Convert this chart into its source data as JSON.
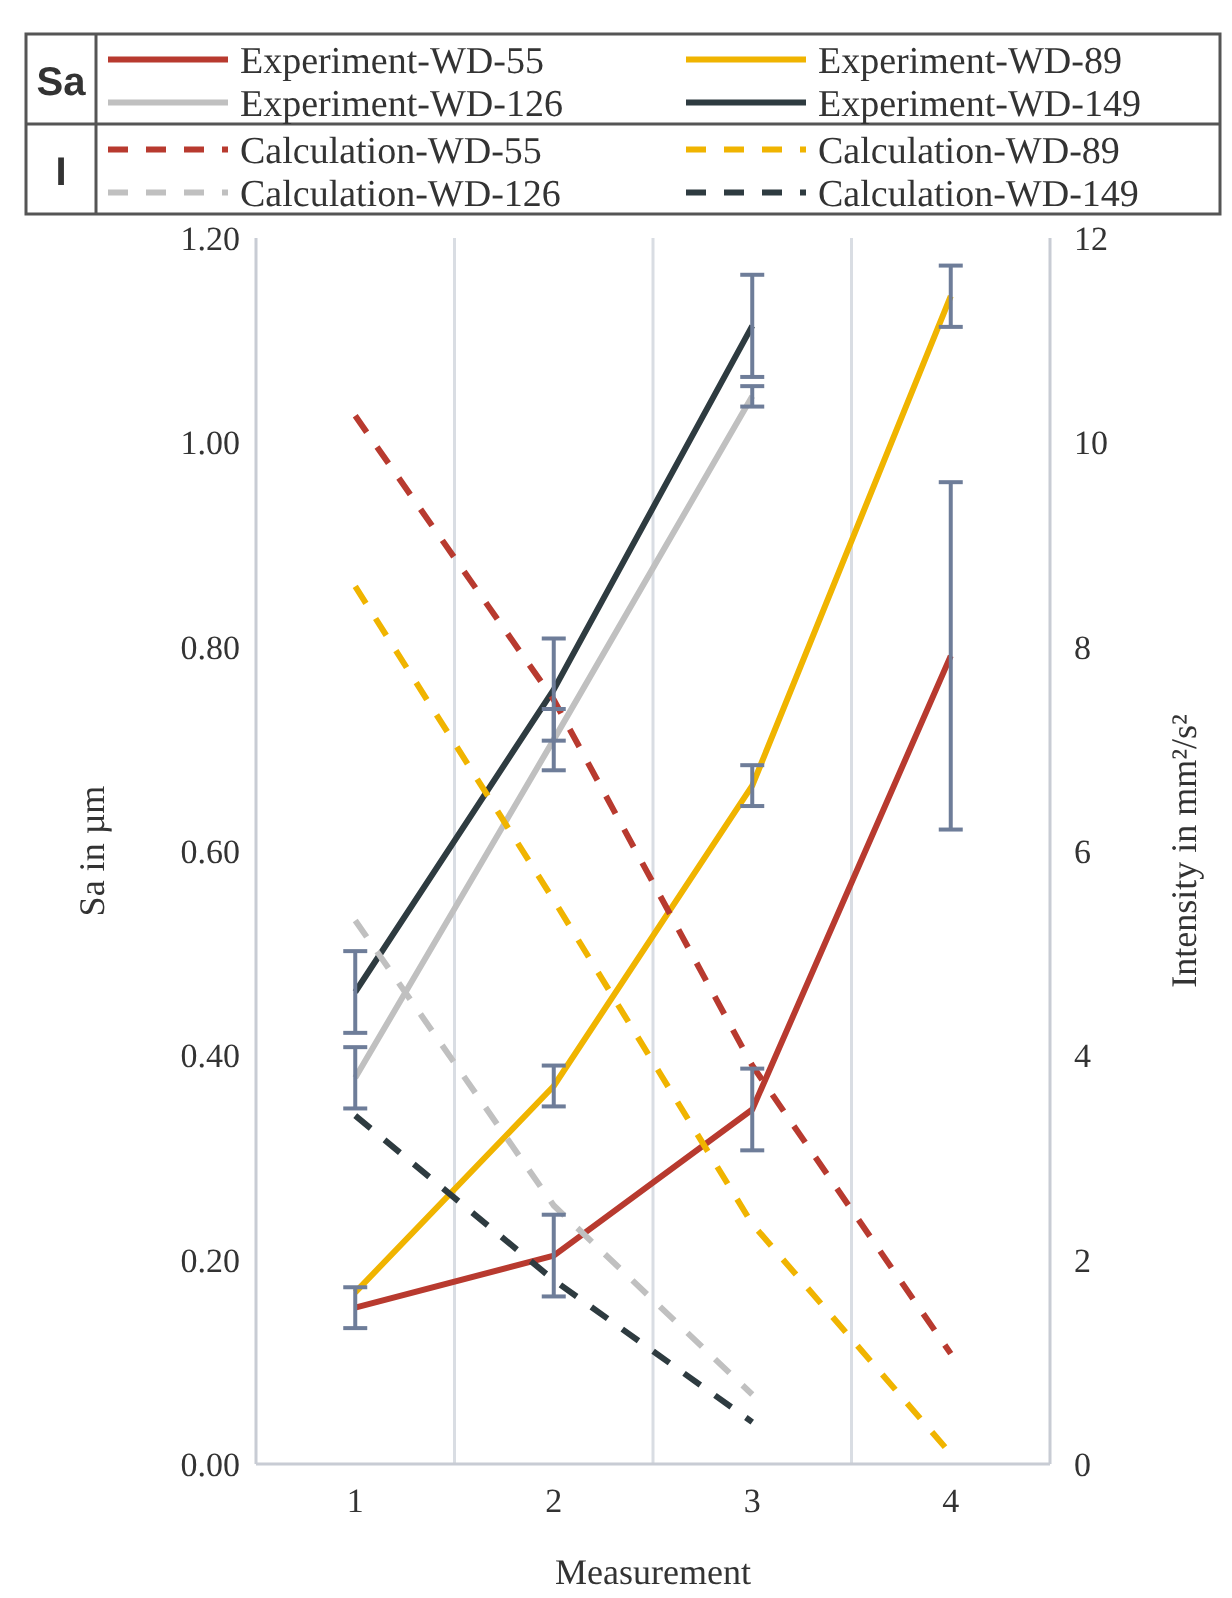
{
  "chart_data": {
    "type": "line",
    "xlabel": "Measurement",
    "ylabel": "Sa in µm",
    "y2label": "Intensity in mm²/s²",
    "categories": [
      "1",
      "2",
      "3",
      "4"
    ],
    "ylim": [
      0,
      1.2
    ],
    "yticks": [
      {
        "value": 0,
        "label": "0.00"
      },
      {
        "value": 0.2,
        "label": "0.20"
      },
      {
        "value": 0.4,
        "label": "0.40"
      },
      {
        "value": 0.6,
        "label": "0.60"
      },
      {
        "value": 0.8,
        "label": "0.80"
      },
      {
        "value": 1,
        "label": "1.00"
      },
      {
        "value": 1.2,
        "label": "1.20"
      }
    ],
    "y2lim": [
      0,
      12
    ],
    "y2ticks": [
      0,
      2,
      4,
      6,
      8,
      10,
      12
    ],
    "grid": "x",
    "legend": "top",
    "marker": "none",
    "annotations": [
      "Sa",
      "I"
    ],
    "series": [
      {
        "name": "Experiment-WD-55",
        "color": "#b83a2f",
        "line_style": "solid",
        "values": [
          0.153,
          0.204,
          0.347,
          0.791
        ],
        "errors": [
          0.02,
          0.04,
          0.04,
          0.17
        ]
      },
      {
        "name": "Experiment-WD-89",
        "color": "#f0b400",
        "line_style": "solid",
        "values": [
          0.168,
          0.37,
          0.664,
          1.143
        ],
        "errors": [
          null,
          0.02,
          0.02,
          0.03
        ]
      },
      {
        "name": "Experiment-WD-126",
        "color": "#c0c0c0",
        "line_style": "solid",
        "values": [
          0.378,
          0.709,
          1.045,
          null
        ],
        "errors": [
          0.03,
          0.03,
          0.01,
          null
        ]
      },
      {
        "name": "Experiment-WD-149",
        "color": "#2e3b40",
        "line_style": "solid",
        "values": [
          0.462,
          0.758,
          1.114,
          null
        ],
        "errors": [
          0.04,
          0.05,
          0.05,
          null
        ]
      },
      {
        "name": "Calculation-WD-55",
        "color": "#b83a2f",
        "line_style": "dashed",
        "axis": "y2",
        "values": [
          10.26,
          7.48,
          3.9,
          1.08
        ]
      },
      {
        "name": "Calculation-WD-89",
        "color": "#f0b400",
        "line_style": "dashed",
        "axis": "y2",
        "values": [
          8.59,
          5.52,
          2.35,
          0.1
        ]
      },
      {
        "name": "Calculation-WD-126",
        "color": "#c0c0c0",
        "line_style": "dashed",
        "axis": "y2",
        "values": [
          5.32,
          2.53,
          0.68,
          null
        ]
      },
      {
        "name": "Calculation-WD-149",
        "color": "#2e3b40",
        "line_style": "dashed",
        "axis": "y2",
        "values": [
          3.41,
          1.8,
          0.41,
          null
        ]
      }
    ]
  }
}
